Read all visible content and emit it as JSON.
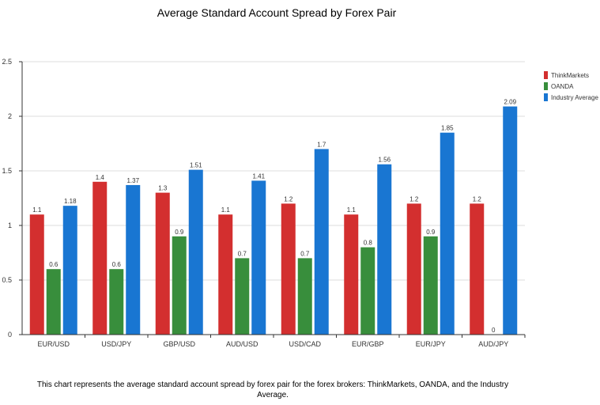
{
  "chart_data": {
    "type": "bar",
    "title": "Average Standard Account Spread by Forex Pair",
    "caption": "This chart represents the average standard account spread by forex pair for the forex brokers: ThinkMarkets, OANDA, and the Industry Average.",
    "categories": [
      "EUR/USD",
      "USD/JPY",
      "GBP/USD",
      "AUD/USD",
      "USD/CAD",
      "EUR/GBP",
      "EUR/JPY",
      "AUD/JPY"
    ],
    "series": [
      {
        "name": "ThinkMarkets",
        "color": "#d32f2f",
        "values": [
          1.1,
          1.4,
          1.3,
          1.1,
          1.2,
          1.1,
          1.2,
          1.2
        ]
      },
      {
        "name": "OANDA",
        "color": "#388e3c",
        "values": [
          0.6,
          0.6,
          0.9,
          0.7,
          0.7,
          0.8,
          0.9,
          0
        ]
      },
      {
        "name": "Industry Average",
        "color": "#1976d2",
        "values": [
          1.18,
          1.37,
          1.51,
          1.41,
          1.7,
          1.56,
          1.85,
          2.09
        ]
      }
    ],
    "ylim": [
      0,
      2.5
    ],
    "yticks": [
      "0",
      "0.5",
      "1",
      "1.5",
      "2",
      "2.5"
    ],
    "grid": true,
    "legend": "right"
  }
}
